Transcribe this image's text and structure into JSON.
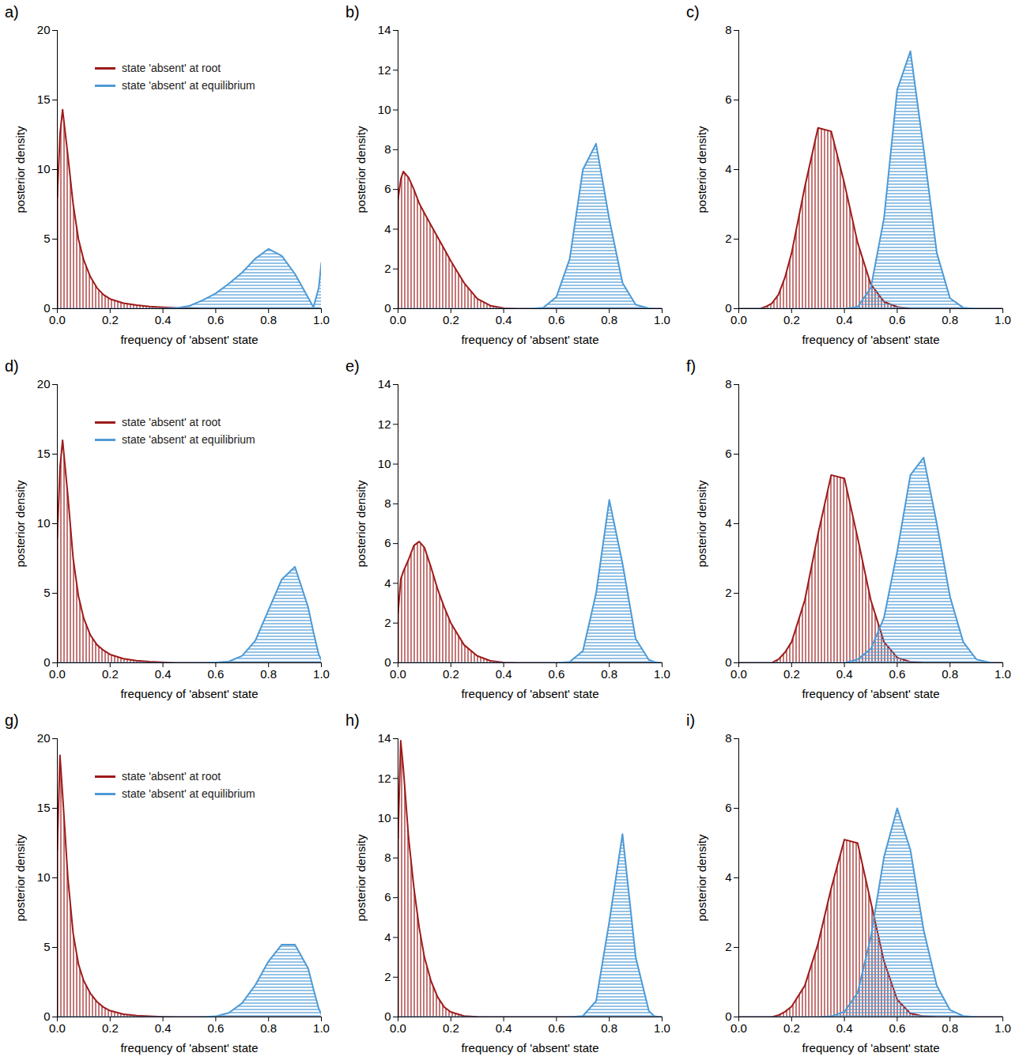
{
  "chart_data": [
    {
      "type": "area",
      "title": "a)",
      "x": [
        0,
        0.01,
        0.02,
        0.04,
        0.06,
        0.08,
        0.1,
        0.125,
        0.15,
        0.175,
        0.2,
        0.25,
        0.3,
        0.35,
        0.4,
        0.45,
        0.5,
        0.55,
        0.6,
        0.65,
        0.7,
        0.75,
        0.8,
        0.85,
        0.9,
        0.95,
        0.97,
        0.99,
        1.0
      ],
      "series": [
        {
          "name": "state 'absent' at root",
          "color": "#9e1b1b",
          "values": [
            8,
            12.5,
            14.3,
            11,
            7.5,
            5,
            3.5,
            2.3,
            1.5,
            1.0,
            0.7,
            0.4,
            0.25,
            0.15,
            0.1,
            0.05,
            0.03,
            0,
            0,
            0,
            0,
            0,
            0,
            0,
            0,
            0,
            0,
            0,
            0
          ]
        },
        {
          "name": "state 'absent' at equilibrium",
          "color": "#4e9ad6",
          "values": [
            0,
            0,
            0,
            0,
            0,
            0,
            0,
            0,
            0,
            0,
            0,
            0,
            0,
            0,
            0,
            0.05,
            0.2,
            0.6,
            1.1,
            1.8,
            2.6,
            3.6,
            4.3,
            3.8,
            2.5,
            0.8,
            0.1,
            1.5,
            3.3
          ]
        }
      ],
      "xlim": [
        0,
        1
      ],
      "xticks": [
        {
          "value": 0,
          "label": "0.0"
        },
        0.2,
        0.4,
        0.6,
        0.8,
        {
          "value": 1,
          "label": "1.0"
        }
      ],
      "ylim": [
        0,
        20
      ],
      "yticks": [
        0,
        5,
        10,
        15,
        20
      ],
      "xlabel": "frequency of 'absent' state",
      "ylabel": "posterior density",
      "legend": "top-right"
    },
    {
      "type": "area",
      "title": "b)",
      "x": [
        0,
        0.01,
        0.02,
        0.04,
        0.06,
        0.08,
        0.1,
        0.125,
        0.15,
        0.175,
        0.2,
        0.25,
        0.3,
        0.35,
        0.4,
        0.45,
        0.5,
        0.55,
        0.6,
        0.65,
        0.7,
        0.75,
        0.8,
        0.85,
        0.9,
        0.95,
        0.97,
        0.99,
        1.0
      ],
      "series": [
        {
          "name": "state 'absent' at root",
          "color": "#9e1b1b",
          "values": [
            5.5,
            6.5,
            6.9,
            6.6,
            6.0,
            5.3,
            4.8,
            4.2,
            3.6,
            3.0,
            2.4,
            1.3,
            0.5,
            0.15,
            0.03,
            0,
            0,
            0,
            0,
            0,
            0,
            0,
            0,
            0,
            0,
            0,
            0,
            0,
            0
          ]
        },
        {
          "name": "state 'absent' at equilibrium",
          "color": "#4e9ad6",
          "values": [
            0,
            0,
            0,
            0,
            0,
            0,
            0,
            0,
            0,
            0,
            0,
            0,
            0,
            0,
            0,
            0,
            0,
            0.05,
            0.6,
            2.5,
            7.0,
            8.3,
            4.5,
            1.3,
            0.2,
            0.02,
            0,
            0,
            0
          ]
        }
      ],
      "xlim": [
        0,
        1
      ],
      "xticks": [
        {
          "value": 0,
          "label": "0.0"
        },
        0.2,
        0.4,
        0.6,
        0.8,
        {
          "value": 1,
          "label": "1.0"
        }
      ],
      "ylim": [
        0,
        14
      ],
      "yticks": [
        0,
        2,
        4,
        6,
        8,
        10,
        12,
        14
      ],
      "xlabel": "frequency of 'absent' state",
      "ylabel": "posterior density"
    },
    {
      "type": "area",
      "title": "c)",
      "x": [
        0,
        0.01,
        0.02,
        0.04,
        0.06,
        0.08,
        0.1,
        0.125,
        0.15,
        0.175,
        0.2,
        0.25,
        0.3,
        0.35,
        0.4,
        0.45,
        0.5,
        0.55,
        0.6,
        0.65,
        0.7,
        0.75,
        0.8,
        0.85,
        0.9,
        0.95,
        0.97,
        0.99,
        1.0
      ],
      "series": [
        {
          "name": "state 'absent' at root",
          "color": "#9e1b1b",
          "values": [
            0,
            0,
            0,
            0,
            0,
            0,
            0.05,
            0.15,
            0.4,
            0.9,
            1.6,
            3.5,
            5.2,
            5.1,
            3.6,
            1.9,
            0.7,
            0.2,
            0.05,
            0,
            0,
            0,
            0,
            0,
            0,
            0,
            0,
            0,
            0
          ]
        },
        {
          "name": "state 'absent' at equilibrium",
          "color": "#4e9ad6",
          "values": [
            0,
            0,
            0,
            0,
            0,
            0,
            0,
            0,
            0,
            0,
            0,
            0,
            0,
            0,
            0,
            0.05,
            0.6,
            2.6,
            6.3,
            7.4,
            4.6,
            1.6,
            0.3,
            0.03,
            0,
            0,
            0,
            0,
            0
          ]
        }
      ],
      "xlim": [
        0,
        1
      ],
      "xticks": [
        {
          "value": 0,
          "label": "0.0"
        },
        0.2,
        0.4,
        0.6,
        0.8,
        {
          "value": 1,
          "label": "1.0"
        }
      ],
      "ylim": [
        0,
        8
      ],
      "yticks": [
        0,
        2,
        4,
        6,
        8
      ],
      "xlabel": "frequency of 'absent' state",
      "ylabel": "posterior density"
    },
    {
      "type": "area",
      "title": "d)",
      "x": [
        0,
        0.01,
        0.02,
        0.04,
        0.06,
        0.08,
        0.1,
        0.125,
        0.15,
        0.175,
        0.2,
        0.25,
        0.3,
        0.35,
        0.4,
        0.45,
        0.5,
        0.55,
        0.6,
        0.65,
        0.7,
        0.75,
        0.8,
        0.85,
        0.9,
        0.95,
        0.97,
        0.99,
        1.0
      ],
      "series": [
        {
          "name": "state 'absent' at root",
          "color": "#9e1b1b",
          "values": [
            9,
            14,
            16,
            12,
            7.5,
            4.8,
            3.2,
            2.0,
            1.3,
            0.9,
            0.6,
            0.3,
            0.15,
            0.08,
            0.04,
            0,
            0,
            0,
            0,
            0,
            0,
            0,
            0,
            0,
            0,
            0,
            0,
            0,
            0
          ]
        },
        {
          "name": "state 'absent' at equilibrium",
          "color": "#4e9ad6",
          "values": [
            0,
            0,
            0,
            0,
            0,
            0,
            0,
            0,
            0,
            0,
            0,
            0,
            0,
            0,
            0,
            0,
            0,
            0,
            0.03,
            0.1,
            0.5,
            1.6,
            3.8,
            6.0,
            6.9,
            4.0,
            2.2,
            0.6,
            0.2
          ]
        }
      ],
      "xlim": [
        0,
        1
      ],
      "xticks": [
        {
          "value": 0,
          "label": "0.0"
        },
        0.2,
        0.4,
        0.6,
        0.8,
        {
          "value": 1,
          "label": "1.0"
        }
      ],
      "ylim": [
        0,
        20
      ],
      "yticks": [
        0,
        5,
        10,
        15,
        20
      ],
      "xlabel": "frequency of 'absent' state",
      "ylabel": "posterior density",
      "legend": "top-right"
    },
    {
      "type": "area",
      "title": "e)",
      "x": [
        0,
        0.01,
        0.02,
        0.04,
        0.06,
        0.08,
        0.1,
        0.125,
        0.15,
        0.175,
        0.2,
        0.25,
        0.3,
        0.35,
        0.4,
        0.45,
        0.5,
        0.55,
        0.6,
        0.65,
        0.7,
        0.75,
        0.8,
        0.85,
        0.9,
        0.95,
        0.97,
        0.99,
        1.0
      ],
      "series": [
        {
          "name": "state 'absent' at root",
          "color": "#9e1b1b",
          "values": [
            2.5,
            4.2,
            4.6,
            5.2,
            5.9,
            6.1,
            5.8,
            4.8,
            3.7,
            2.8,
            2.0,
            0.9,
            0.35,
            0.1,
            0.02,
            0,
            0,
            0,
            0,
            0,
            0,
            0,
            0,
            0,
            0,
            0,
            0,
            0,
            0
          ]
        },
        {
          "name": "state 'absent' at equilibrium",
          "color": "#4e9ad6",
          "values": [
            0,
            0,
            0,
            0,
            0,
            0,
            0,
            0,
            0,
            0,
            0,
            0,
            0,
            0,
            0,
            0,
            0,
            0,
            0,
            0.05,
            0.6,
            3.5,
            8.2,
            5.0,
            1.2,
            0.15,
            0.05,
            0,
            0
          ]
        }
      ],
      "xlim": [
        0,
        1
      ],
      "xticks": [
        {
          "value": 0,
          "label": "0.0"
        },
        0.2,
        0.4,
        0.6,
        0.8,
        {
          "value": 1,
          "label": "1.0"
        }
      ],
      "ylim": [
        0,
        14
      ],
      "yticks": [
        0,
        2,
        4,
        6,
        8,
        10,
        12,
        14
      ],
      "xlabel": "frequency of 'absent' state",
      "ylabel": "posterior density"
    },
    {
      "type": "area",
      "title": "f)",
      "x": [
        0,
        0.01,
        0.02,
        0.04,
        0.06,
        0.08,
        0.1,
        0.125,
        0.15,
        0.175,
        0.2,
        0.25,
        0.3,
        0.35,
        0.4,
        0.45,
        0.5,
        0.55,
        0.6,
        0.65,
        0.7,
        0.75,
        0.8,
        0.85,
        0.9,
        0.95,
        0.97,
        0.99,
        1.0
      ],
      "series": [
        {
          "name": "state 'absent' at root",
          "color": "#9e1b1b",
          "values": [
            0,
            0,
            0,
            0,
            0,
            0,
            0,
            0,
            0.1,
            0.3,
            0.6,
            1.8,
            3.7,
            5.4,
            5.3,
            3.6,
            1.8,
            0.6,
            0.15,
            0.03,
            0,
            0,
            0,
            0,
            0,
            0,
            0,
            0,
            0
          ]
        },
        {
          "name": "state 'absent' at equilibrium",
          "color": "#4e9ad6",
          "values": [
            0,
            0,
            0,
            0,
            0,
            0,
            0,
            0,
            0,
            0,
            0,
            0,
            0,
            0,
            0,
            0.1,
            0.4,
            1.3,
            3.2,
            5.4,
            5.9,
            4.0,
            1.9,
            0.6,
            0.1,
            0.01,
            0,
            0,
            0
          ]
        }
      ],
      "xlim": [
        0,
        1
      ],
      "xticks": [
        {
          "value": 0,
          "label": "0.0"
        },
        0.2,
        0.4,
        0.6,
        0.8,
        {
          "value": 1,
          "label": "1.0"
        }
      ],
      "ylim": [
        0,
        8
      ],
      "yticks": [
        0,
        2,
        4,
        6,
        8
      ],
      "xlabel": "frequency of 'absent' state",
      "ylabel": "posterior density"
    },
    {
      "type": "area",
      "title": "g)",
      "x": [
        0,
        0.01,
        0.02,
        0.04,
        0.06,
        0.08,
        0.1,
        0.125,
        0.15,
        0.175,
        0.2,
        0.25,
        0.3,
        0.35,
        0.4,
        0.45,
        0.5,
        0.55,
        0.6,
        0.65,
        0.7,
        0.75,
        0.8,
        0.85,
        0.9,
        0.95,
        0.97,
        0.99,
        1.0
      ],
      "series": [
        {
          "name": "state 'absent' at root",
          "color": "#9e1b1b",
          "values": [
            12,
            18.8,
            16,
            10,
            6,
            3.8,
            2.6,
            1.7,
            1.1,
            0.7,
            0.45,
            0.2,
            0.1,
            0.05,
            0.02,
            0,
            0,
            0,
            0,
            0,
            0,
            0,
            0,
            0,
            0,
            0,
            0,
            0,
            0
          ]
        },
        {
          "name": "state 'absent' at equilibrium",
          "color": "#4e9ad6",
          "values": [
            0,
            0,
            0,
            0,
            0,
            0,
            0,
            0,
            0,
            0,
            0,
            0,
            0,
            0,
            0,
            0,
            0,
            0,
            0.05,
            0.3,
            1.0,
            2.3,
            4.0,
            5.2,
            5.2,
            3.5,
            2.0,
            0.6,
            0.2
          ]
        }
      ],
      "xlim": [
        0,
        1
      ],
      "xticks": [
        {
          "value": 0,
          "label": "0.0"
        },
        0.2,
        0.4,
        0.6,
        0.8,
        {
          "value": 1,
          "label": "1.0"
        }
      ],
      "ylim": [
        0,
        20
      ],
      "yticks": [
        0,
        5,
        10,
        15,
        20
      ],
      "xlabel": "frequency of 'absent' state",
      "ylabel": "posterior density",
      "legend": "top-right"
    },
    {
      "type": "area",
      "title": "h)",
      "x": [
        0,
        0.01,
        0.02,
        0.04,
        0.06,
        0.08,
        0.1,
        0.125,
        0.15,
        0.175,
        0.2,
        0.25,
        0.3,
        0.35,
        0.4,
        0.45,
        0.5,
        0.55,
        0.6,
        0.65,
        0.7,
        0.75,
        0.8,
        0.85,
        0.9,
        0.95,
        0.97,
        0.99,
        1.0
      ],
      "series": [
        {
          "name": "state 'absent' at root",
          "color": "#9e1b1b",
          "values": [
            9,
            13.9,
            12.5,
            9,
            6.5,
            4.5,
            3.0,
            1.8,
            1.0,
            0.5,
            0.25,
            0.05,
            0.01,
            0,
            0,
            0,
            0,
            0,
            0,
            0,
            0,
            0,
            0,
            0,
            0,
            0,
            0,
            0,
            0
          ]
        },
        {
          "name": "state 'absent' at equilibrium",
          "color": "#4e9ad6",
          "values": [
            0,
            0,
            0,
            0,
            0,
            0,
            0,
            0,
            0,
            0,
            0,
            0,
            0,
            0,
            0,
            0,
            0,
            0,
            0,
            0,
            0.05,
            0.8,
            4.8,
            9.2,
            3.0,
            0.3,
            0.05,
            0,
            0
          ]
        }
      ],
      "xlim": [
        0,
        1
      ],
      "xticks": [
        {
          "value": 0,
          "label": "0.0"
        },
        0.2,
        0.4,
        0.6,
        0.8,
        {
          "value": 1,
          "label": "1.0"
        }
      ],
      "ylim": [
        0,
        14
      ],
      "yticks": [
        0,
        2,
        4,
        6,
        8,
        10,
        12,
        14
      ],
      "xlabel": "frequency of 'absent' state",
      "ylabel": "posterior density"
    },
    {
      "type": "area",
      "title": "i)",
      "x": [
        0,
        0.01,
        0.02,
        0.04,
        0.06,
        0.08,
        0.1,
        0.125,
        0.15,
        0.175,
        0.2,
        0.25,
        0.3,
        0.35,
        0.4,
        0.45,
        0.5,
        0.55,
        0.6,
        0.65,
        0.7,
        0.75,
        0.8,
        0.85,
        0.9,
        0.95,
        0.97,
        0.99,
        1.0
      ],
      "series": [
        {
          "name": "state 'absent' at root",
          "color": "#9e1b1b",
          "values": [
            0,
            0,
            0,
            0,
            0,
            0,
            0,
            0,
            0.05,
            0.15,
            0.3,
            0.9,
            2.1,
            3.7,
            5.1,
            5.0,
            3.3,
            1.6,
            0.5,
            0.1,
            0.02,
            0,
            0,
            0,
            0,
            0,
            0,
            0,
            0
          ]
        },
        {
          "name": "state 'absent' at equilibrium",
          "color": "#4e9ad6",
          "values": [
            0,
            0,
            0,
            0,
            0,
            0,
            0,
            0,
            0,
            0,
            0,
            0,
            0,
            0.02,
            0.15,
            0.7,
            2.3,
            4.6,
            6.0,
            4.8,
            2.5,
            0.9,
            0.2,
            0.03,
            0,
            0,
            0,
            0,
            0
          ]
        }
      ],
      "xlim": [
        0,
        1
      ],
      "xticks": [
        {
          "value": 0,
          "label": "0.0"
        },
        0.2,
        0.4,
        0.6,
        0.8,
        {
          "value": 1,
          "label": "1.0"
        }
      ],
      "ylim": [
        0,
        8
      ],
      "yticks": [
        0,
        2,
        4,
        6,
        8
      ],
      "xlabel": "frequency of 'absent' state",
      "ylabel": "posterior density"
    }
  ]
}
